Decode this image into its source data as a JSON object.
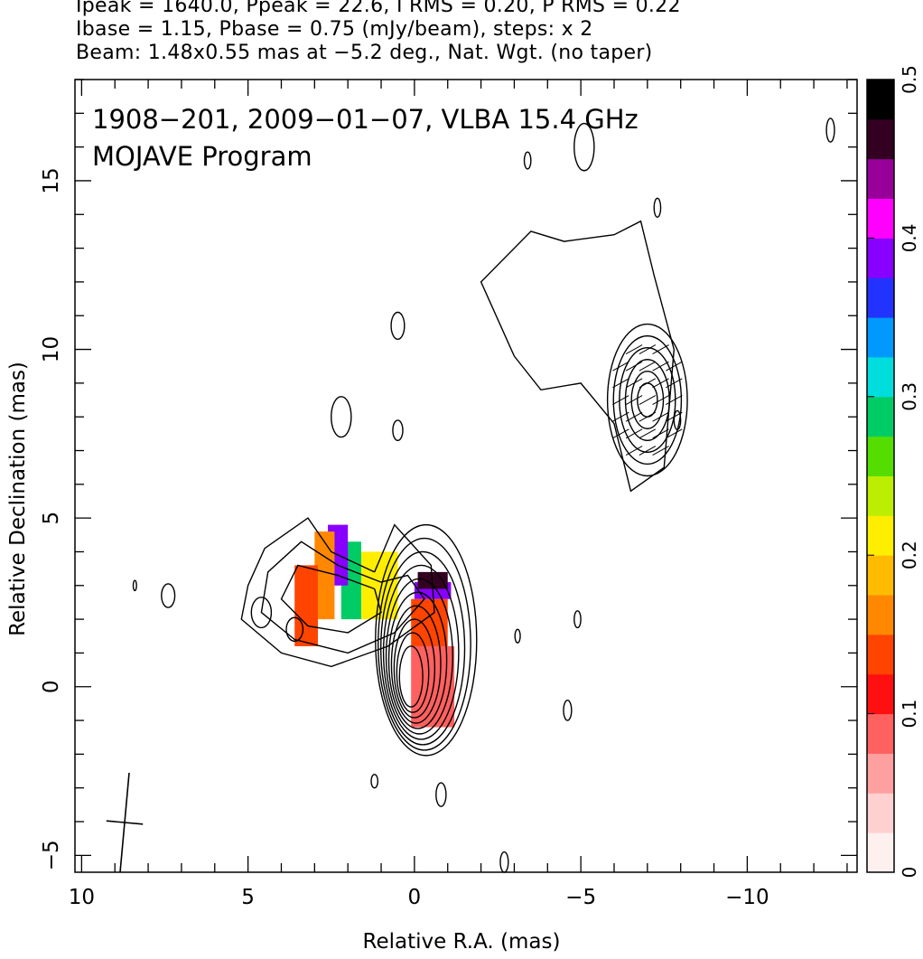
{
  "header": {
    "line1": "Ipeak = 1640.0, Ppeak = 22.6, I RMS = 0.20, P RMS = 0.22",
    "line2": "Ibase = 1.15, Pbase = 0.75 (mJy/beam), steps: x 2",
    "line3": "Beam: 1.48x0.55 mas at −5.2 deg., Nat. Wgt. (no taper)"
  },
  "chart_data": {
    "type": "heatmap",
    "title": "1908−201, 2009−01−07, VLBA 15.4 GHz",
    "subtitle": "MOJAVE Program",
    "xlabel": "Relative R.A. (mas)",
    "ylabel": "Relative Declination (mas)",
    "xlim": [
      10.2,
      -13.3
    ],
    "ylim": [
      -5.5,
      18.0
    ],
    "x_ticks": [
      10,
      5,
      0,
      -5,
      -10
    ],
    "x_tick_labels": [
      "10",
      "5",
      "0",
      "−5",
      "−10"
    ],
    "y_ticks": [
      -5,
      0,
      5,
      10,
      15
    ],
    "y_tick_labels": [
      "−5",
      "0",
      "5",
      "10",
      "15"
    ],
    "colorbar": {
      "range": [
        0,
        0.5
      ],
      "ticks": [
        0,
        0.1,
        0.2,
        0.3,
        0.4,
        0.5
      ],
      "tick_labels": [
        "0",
        "0.1",
        "0.2",
        "0.3",
        "0.4",
        "0.5"
      ],
      "colors": [
        "#fff0f0",
        "#ffd0d0",
        "#ffa0a0",
        "#ff6060",
        "#ff1010",
        "#ff4400",
        "#ff8800",
        "#ffbb00",
        "#ffee00",
        "#bbee00",
        "#55dd00",
        "#00cc66",
        "#00dddd",
        "#0099ff",
        "#2233ff",
        "#8800ff",
        "#ff00ff",
        "#990099",
        "#330022",
        "#000000"
      ]
    },
    "contours": {
      "base_mJy_per_beam": 1.15,
      "step_factor": 2,
      "core_center": [
        0.1,
        0.3
      ],
      "jet_knot_center": [
        -7.0,
        8.5
      ]
    },
    "fractional_polarization_regions": [
      {
        "x": [
          -1.2,
          0.1
        ],
        "y": [
          -1.2,
          1.2
        ],
        "value": 0.08
      },
      {
        "x": [
          -1.0,
          0.1
        ],
        "y": [
          1.2,
          2.6
        ],
        "value": 0.13
      },
      {
        "x": [
          -1.1,
          0.0
        ],
        "y": [
          2.6,
          3.1
        ],
        "value": 0.4
      },
      {
        "x": [
          -1.0,
          -0.1
        ],
        "y": [
          2.9,
          3.4
        ],
        "value": 0.47
      },
      {
        "x": [
          0.5,
          1.6
        ],
        "y": [
          2.0,
          4.0
        ],
        "value": 0.22
      },
      {
        "x": [
          1.6,
          2.2
        ],
        "y": [
          2.0,
          4.3
        ],
        "value": 0.28
      },
      {
        "x": [
          2.0,
          2.6
        ],
        "y": [
          3.0,
          4.8
        ],
        "value": 0.4
      },
      {
        "x": [
          2.4,
          3.0
        ],
        "y": [
          2.0,
          4.6
        ],
        "value": 0.16
      },
      {
        "x": [
          2.9,
          3.6
        ],
        "y": [
          1.2,
          3.6
        ],
        "value": 0.12
      }
    ],
    "beam": {
      "major_mas": 1.48,
      "minor_mas": 0.55,
      "pa_deg": -5.2,
      "position": "bottom-left"
    }
  }
}
